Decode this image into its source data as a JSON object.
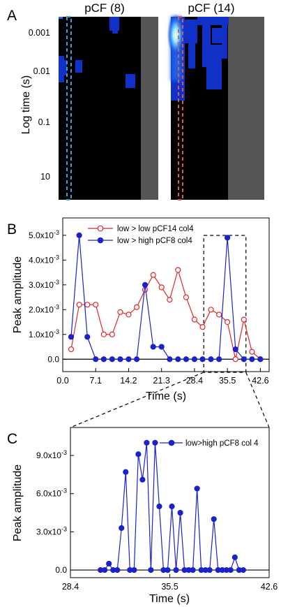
{
  "panels": {
    "a": "A",
    "b": "B",
    "c": "C"
  },
  "chart_data": [
    {
      "panel": "A",
      "type": "heatmap",
      "subplots": [
        {
          "title": "pCF (8)",
          "marker_color": "#3aa3d8"
        },
        {
          "title": "pCF (14)",
          "marker_color": "#e05a4a"
        }
      ],
      "ylabel": "Log time (s)",
      "ytick_labels": [
        "0.001",
        "0.01",
        "0.1",
        "10"
      ],
      "colors": {
        "background": "#000000",
        "low": "#1030c8",
        "high": "#9ff0ff",
        "mask": "#555555"
      }
    },
    {
      "panel": "B",
      "type": "line",
      "xlabel": "Time (s)",
      "ylabel": "Peak amplitude",
      "xlim": [
        0,
        44.5
      ],
      "ylim": [
        -0.0005,
        0.0057
      ],
      "x_ticks": [
        0.0,
        7.1,
        14.2,
        21.3,
        28.4,
        35.5,
        42.6
      ],
      "x_tick_labels": [
        "0.0",
        "7.1",
        "14.2",
        "21.3",
        "28.4",
        "35.5",
        "42.6"
      ],
      "y_ticks": [
        0.0,
        0.001,
        0.002,
        0.003,
        0.004,
        0.005
      ],
      "y_tick_labels": [
        "0.0",
        "1.0x10-3",
        "2.0x10-3",
        "3.0x10-3",
        "4.0x10-3",
        "5.0x10-3"
      ],
      "legend_position": "top",
      "inset_box_x": [
        30.4,
        39.5
      ],
      "series": [
        {
          "name": "low > low pCF14 col4",
          "color": "#e0262b",
          "marker": "open-circle",
          "x": [
            1.8,
            3.55,
            5.3,
            7.1,
            8.85,
            10.65,
            12.4,
            14.2,
            15.95,
            17.75,
            19.5,
            21.3,
            23.05,
            24.85,
            26.6,
            28.4,
            30.15,
            31.95,
            33.7,
            35.5,
            37.25,
            39.05,
            40.8,
            42.6
          ],
          "values": [
            0.0004,
            0.0022,
            0.0022,
            0.0022,
            0.001,
            0.001,
            0.0019,
            0.0018,
            0.0021,
            0.0028,
            0.0034,
            0.0029,
            0.0024,
            0.0036,
            0.0025,
            0.0016,
            0.0013,
            0.002,
            0.0018,
            0.0015,
            0.0,
            0.0016,
            0.0003,
            0.0
          ]
        },
        {
          "name": "low > high pCF8 col4",
          "color": "#1a22c8",
          "marker": "filled-circle",
          "x": [
            1.8,
            3.55,
            5.3,
            7.1,
            8.85,
            10.65,
            12.4,
            14.2,
            15.95,
            17.75,
            19.5,
            21.3,
            23.05,
            24.85,
            26.6,
            28.4,
            30.15,
            31.95,
            33.7,
            35.5,
            37.25,
            39.05,
            40.8,
            42.6
          ],
          "values": [
            0.0009,
            0.005,
            0.0009,
            0.0,
            0.0,
            0.0,
            0.0,
            0.0,
            0.0,
            0.003,
            0.0005,
            0.0005,
            0.0,
            0.0,
            0.0,
            0.0,
            0.0,
            0.0,
            0.0,
            0.0049,
            0.0004,
            0.0,
            0.0,
            0.0
          ]
        }
      ]
    },
    {
      "panel": "C",
      "type": "line",
      "xlabel": "Time (s)",
      "ylabel": "Peak amplitude",
      "xlim": [
        28.4,
        42.6
      ],
      "ylim": [
        -0.0006,
        0.0112
      ],
      "x_ticks": [
        28.4,
        35.5,
        42.6
      ],
      "x_tick_labels": [
        "28.4",
        "35.5",
        "42.6"
      ],
      "y_ticks": [
        0.0,
        0.003,
        0.006,
        0.009
      ],
      "y_tick_labels": [
        "0.0",
        "3.0x10-3",
        "6.0x10-3",
        "9.0x10-3"
      ],
      "legend_position": "top-right",
      "series": [
        {
          "name": "low>high pCF8 col 4",
          "color": "#1a22c8",
          "marker": "filled-circle",
          "x": [
            30.55,
            30.85,
            31.15,
            31.45,
            31.75,
            32.05,
            32.35,
            32.65,
            32.95,
            33.25,
            33.55,
            33.85,
            34.15,
            34.45,
            34.75,
            35.05,
            35.35,
            35.65,
            35.95,
            36.25,
            36.55,
            36.85,
            37.15,
            37.45,
            37.75,
            38.05,
            38.35,
            38.65,
            38.95,
            39.25,
            39.55,
            39.85,
            40.15,
            40.45,
            40.75
          ],
          "values": [
            0.0,
            0.0,
            0.0005,
            0.0,
            0.0,
            0.0033,
            0.0077,
            0.0,
            0.0,
            0.0091,
            0.0071,
            0.01,
            0.0,
            0.01,
            0.005,
            0.0,
            0.0,
            0.005,
            0.0,
            0.0045,
            0.0,
            0.0,
            0.0,
            0.0064,
            0.0,
            0.0,
            0.0,
            0.004,
            0.0,
            0.0,
            0.0,
            0.0,
            0.001,
            0.0,
            0.0
          ]
        }
      ]
    }
  ]
}
